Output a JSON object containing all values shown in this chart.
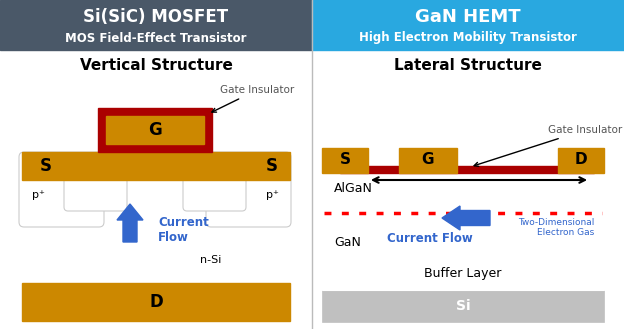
{
  "left_title": "Si(SiC) MOSFET",
  "left_subtitle": "MOS Field-Effect Transistor",
  "left_title_bg": "#4a5868",
  "right_title": "GaN HEMT",
  "right_subtitle": "High Electron Mobility Transistor",
  "right_title_bg": "#29a8e0",
  "left_struct_title": "Vertical Structure",
  "right_struct_title": "Lateral Structure",
  "gold_color": "#cc8800",
  "red_color": "#aa0000",
  "blue_color": "#3366cc",
  "white": "#ffffff",
  "light_gray": "#d0d0d0",
  "very_light_gray": "#f0f0f0",
  "bg_color": "#ffffff"
}
